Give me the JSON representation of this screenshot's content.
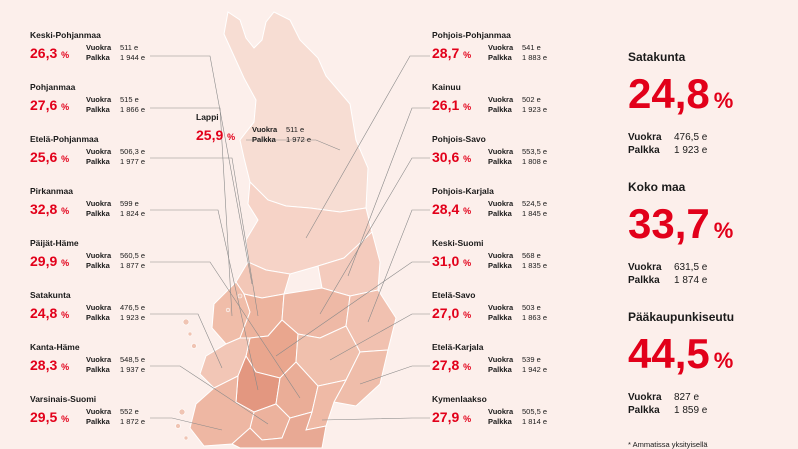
{
  "regions": [
    {
      "name": "Keski-Pohjanmaa",
      "pct": "26,3",
      "vuokra": "511 e",
      "palkka": "1 944 e"
    },
    {
      "name": "Pohjanmaa",
      "pct": "27,6",
      "vuokra": "515 e",
      "palkka": "1 866 e"
    },
    {
      "name": "Etelä-Pohjanmaa",
      "pct": "25,6",
      "vuokra": "506,3 e",
      "palkka": "1 977 e"
    },
    {
      "name": "Pirkanmaa",
      "pct": "32,8",
      "vuokra": "599 e",
      "palkka": "1 824 e"
    },
    {
      "name": "Päijät-Häme",
      "pct": "29,9",
      "vuokra": "560,5 e",
      "palkka": "1 877 e"
    },
    {
      "name": "Satakunta",
      "pct": "24,8",
      "vuokra": "476,5 e",
      "palkka": "1 923 e"
    },
    {
      "name": "Kanta-Häme",
      "pct": "28,3",
      "vuokra": "548,5 e",
      "palkka": "1 937 e"
    },
    {
      "name": "Varsinais-Suomi",
      "pct": "29,5",
      "vuokra": "552 e",
      "palkka": "1 872 e"
    },
    {
      "name": "Lappi",
      "pct": "25,9",
      "vuokra": "511 e",
      "palkka": "1 972 e"
    },
    {
      "name": "Pohjois-Pohjanmaa",
      "pct": "28,7",
      "vuokra": "541 e",
      "palkka": "1 883 e"
    },
    {
      "name": "Kainuu",
      "pct": "26,1",
      "vuokra": "502 e",
      "palkka": "1 923 e"
    },
    {
      "name": "Pohjois-Savo",
      "pct": "30,6",
      "vuokra": "553,5 e",
      "palkka": "1 808 e"
    },
    {
      "name": "Pohjois-Karjala",
      "pct": "28,4",
      "vuokra": "524,5 e",
      "palkka": "1 845 e"
    },
    {
      "name": "Keski-Suomi",
      "pct": "31,0",
      "vuokra": "568 e",
      "palkka": "1 835 e"
    },
    {
      "name": "Etelä-Savo",
      "pct": "27,0",
      "vuokra": "503 e",
      "palkka": "1 863 e"
    },
    {
      "name": "Etelä-Karjala",
      "pct": "27,8",
      "vuokra": "539 e",
      "palkka": "1 942 e"
    },
    {
      "name": "Kymenlaakso",
      "pct": "27,9",
      "vuokra": "505,5 e",
      "palkka": "1 814 e"
    }
  ],
  "side": [
    {
      "name": "Satakunta",
      "pct": "24,8",
      "vuokra": "476,5 e",
      "palkka": "1 923 e"
    },
    {
      "name": "Koko maa",
      "pct": "33,7",
      "vuokra": "631,5 e",
      "palkka": "1 874 e"
    },
    {
      "name": "Pääkaupunkiseutu",
      "pct": "44,5",
      "vuokra": "827 e",
      "palkka": "1 859 e"
    }
  ],
  "labels": {
    "vuokra": "Vuokra",
    "palkka": "Palkka",
    "pct_unit": "%"
  },
  "footnote": "* Ammatissa yksityisellä",
  "colors": {
    "accent": "#e2001a",
    "background": "#fcefeb",
    "fill_light": "#f6d3c7",
    "fill_mid": "#eeb8a5",
    "fill_dark": "#e59d86"
  }
}
